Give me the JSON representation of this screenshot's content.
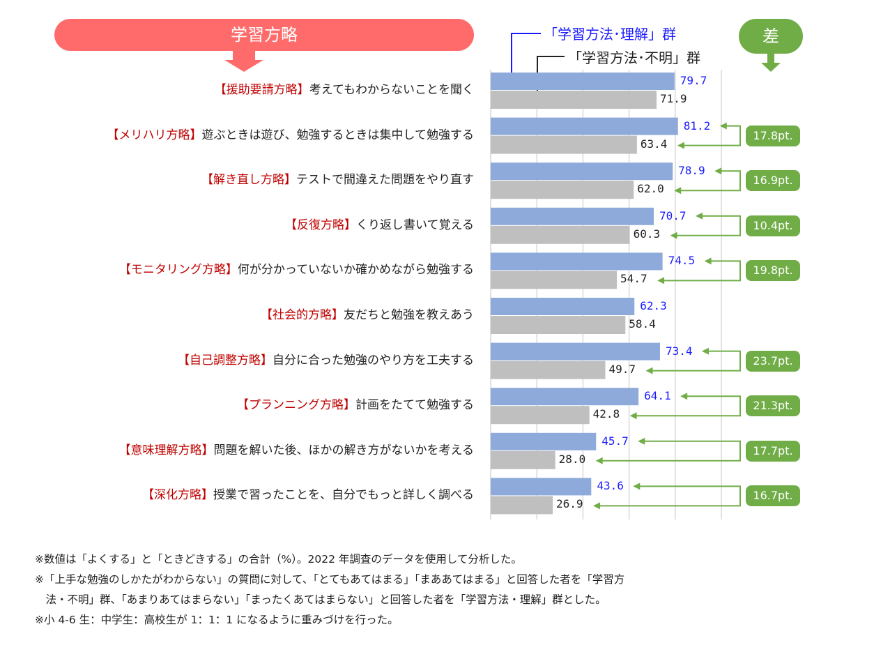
{
  "header": {
    "title": "学習方略",
    "diff_label": "差"
  },
  "chart_data": {
    "type": "bar",
    "orientation": "horizontal",
    "xlim": [
      0,
      100
    ],
    "grid": true,
    "series": [
      {
        "name": "「学習方法･理解」群",
        "color": "#8eaadb",
        "label_color": "#1a1aff"
      },
      {
        "name": "「学習方法･不明」群",
        "color": "#bfbfbf",
        "label_color": "#222222"
      }
    ],
    "categories": [
      {
        "tag": "【援助要請方略】",
        "text": "考えてもわからないことを聞く",
        "understand": 79.7,
        "unclear": 71.9,
        "diff": ""
      },
      {
        "tag": "【メリハリ方略】",
        "text": "遊ぶときは遊び、勉強するときは集中して勉強する",
        "understand": 81.2,
        "unclear": 63.4,
        "diff": "17.8pt."
      },
      {
        "tag": "【解き直し方略】",
        "text": "テストで間違えた問題をやり直す",
        "understand": 78.9,
        "unclear": 62.0,
        "diff": "16.9pt."
      },
      {
        "tag": "【反復方略】",
        "text": "くり返し書いて覚える",
        "understand": 70.7,
        "unclear": 60.3,
        "diff": "10.4pt."
      },
      {
        "tag": "【モニタリング方略】",
        "text": "何が分かっていないか確かめながら勉強する",
        "understand": 74.5,
        "unclear": 54.7,
        "diff": "19.8pt."
      },
      {
        "tag": "【社会的方略】",
        "text": "友だちと勉強を教えあう",
        "understand": 62.3,
        "unclear": 58.4,
        "diff": ""
      },
      {
        "tag": "【自己調整方略】",
        "text": "自分に合った勉強のやり方を工夫する",
        "understand": 73.4,
        "unclear": 49.7,
        "diff": "23.7pt."
      },
      {
        "tag": "【プランニング方略】",
        "text": "計画をたてて勉強する",
        "understand": 64.1,
        "unclear": 42.8,
        "diff": "21.3pt."
      },
      {
        "tag": "【意味理解方略】",
        "text": "問題を解いた後、ほかの解き方がないかを考える",
        "understand": 45.7,
        "unclear": 28.0,
        "diff": "17.7pt."
      },
      {
        "tag": "【深化方略】",
        "text": "授業で習ったことを、自分でもっと詳しく調べる",
        "understand": 43.6,
        "unclear": 26.9,
        "diff": "16.7pt."
      }
    ]
  },
  "footnotes": [
    "※数値は「よくする」と「ときどきする」の合計（%）。2022 年調査のデータを使用して分析した。",
    "※「上手な勉強のしかたがわからない」の質問に対して、「とてもあてはまる」「まああてはまる」と回答した者を「学習方",
    "　法・不明」群、「あまりあてはまらない」「まったくあてはまらない」と回答した者を「学習方法・理解」群とした。",
    "※小 4-6 生：中学生：高校生が 1：1：1 になるように重みづけを行った。"
  ]
}
